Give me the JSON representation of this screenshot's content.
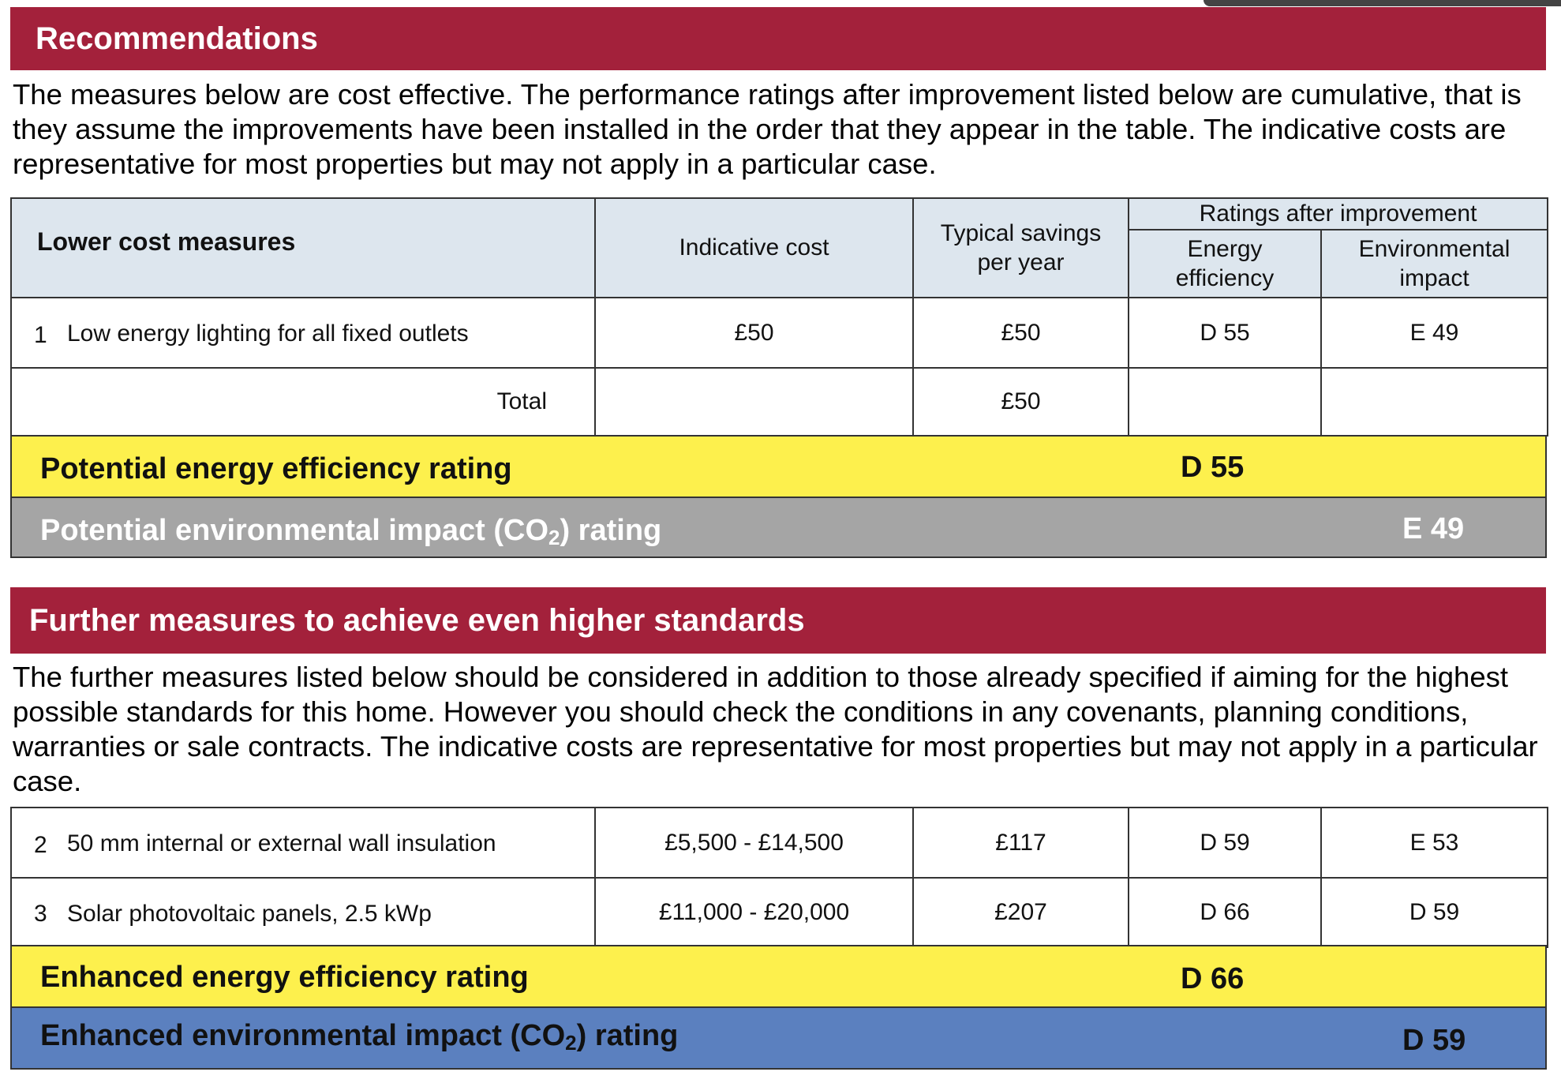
{
  "recommendations": {
    "title": "Recommendations",
    "intro": "The measures below are cost effective.  The performance ratings after improvement listed below are cumulative, that is they assume the improvements have been installed in the order that they appear in the table. The indicative costs are representative for most properties but may not apply in a particular case.",
    "table": {
      "col_measures": "Lower cost measures",
      "col_cost": "Indicative cost",
      "col_savings": "Typical savings per year",
      "col_ratings_group": "Ratings after improvement",
      "col_energy": "Energy efficiency",
      "col_environment": "Environmental impact",
      "rows": [
        {
          "num": "1",
          "measure": "Low energy lighting for all fixed outlets",
          "cost": "£50",
          "savings": "£50",
          "energy": "D 55",
          "environment": "E 49"
        }
      ],
      "total_label": "Total",
      "total_savings": "£50"
    },
    "potential_energy": {
      "label": "Potential energy efficiency rating",
      "value": "D 55"
    },
    "potential_env": {
      "label_pre": "Potential environmental impact (CO",
      "label_sub": "2",
      "label_post": ") rating",
      "value": "E 49"
    }
  },
  "further": {
    "title": "Further measures to achieve even higher standards",
    "intro": "The further measures listed below should be considered in addition to those already specified if aiming for the highest possible standards for this home. However you should check the conditions in any covenants, planning conditions, warranties or sale contracts. The indicative costs are representative for most properties but may not apply in a particular case.",
    "rows": [
      {
        "num": "2",
        "measure": "50 mm internal or external wall insulation",
        "cost": "£5,500 - £14,500",
        "savings": "£117",
        "energy": "D 59",
        "environment": "E 53"
      },
      {
        "num": "3",
        "measure": "Solar photovoltaic panels, 2.5 kWp",
        "cost": "£11,000 - £20,000",
        "savings": "£207",
        "energy": "D 66",
        "environment": "D 59"
      }
    ],
    "enhanced_energy": {
      "label": "Enhanced energy efficiency rating",
      "value": "D 66"
    },
    "enhanced_env": {
      "label_pre": "Enhanced environmental impact (CO",
      "label_sub": "2",
      "label_post": ") rating",
      "value": "D 59"
    }
  },
  "colors": {
    "section_bar": "#a3213b",
    "header_fill": "#dde6ee",
    "energy_bar": "#fdf04d",
    "potential_env_bar": "#a5a5a5",
    "enhanced_env_bar": "#5b80bf"
  }
}
